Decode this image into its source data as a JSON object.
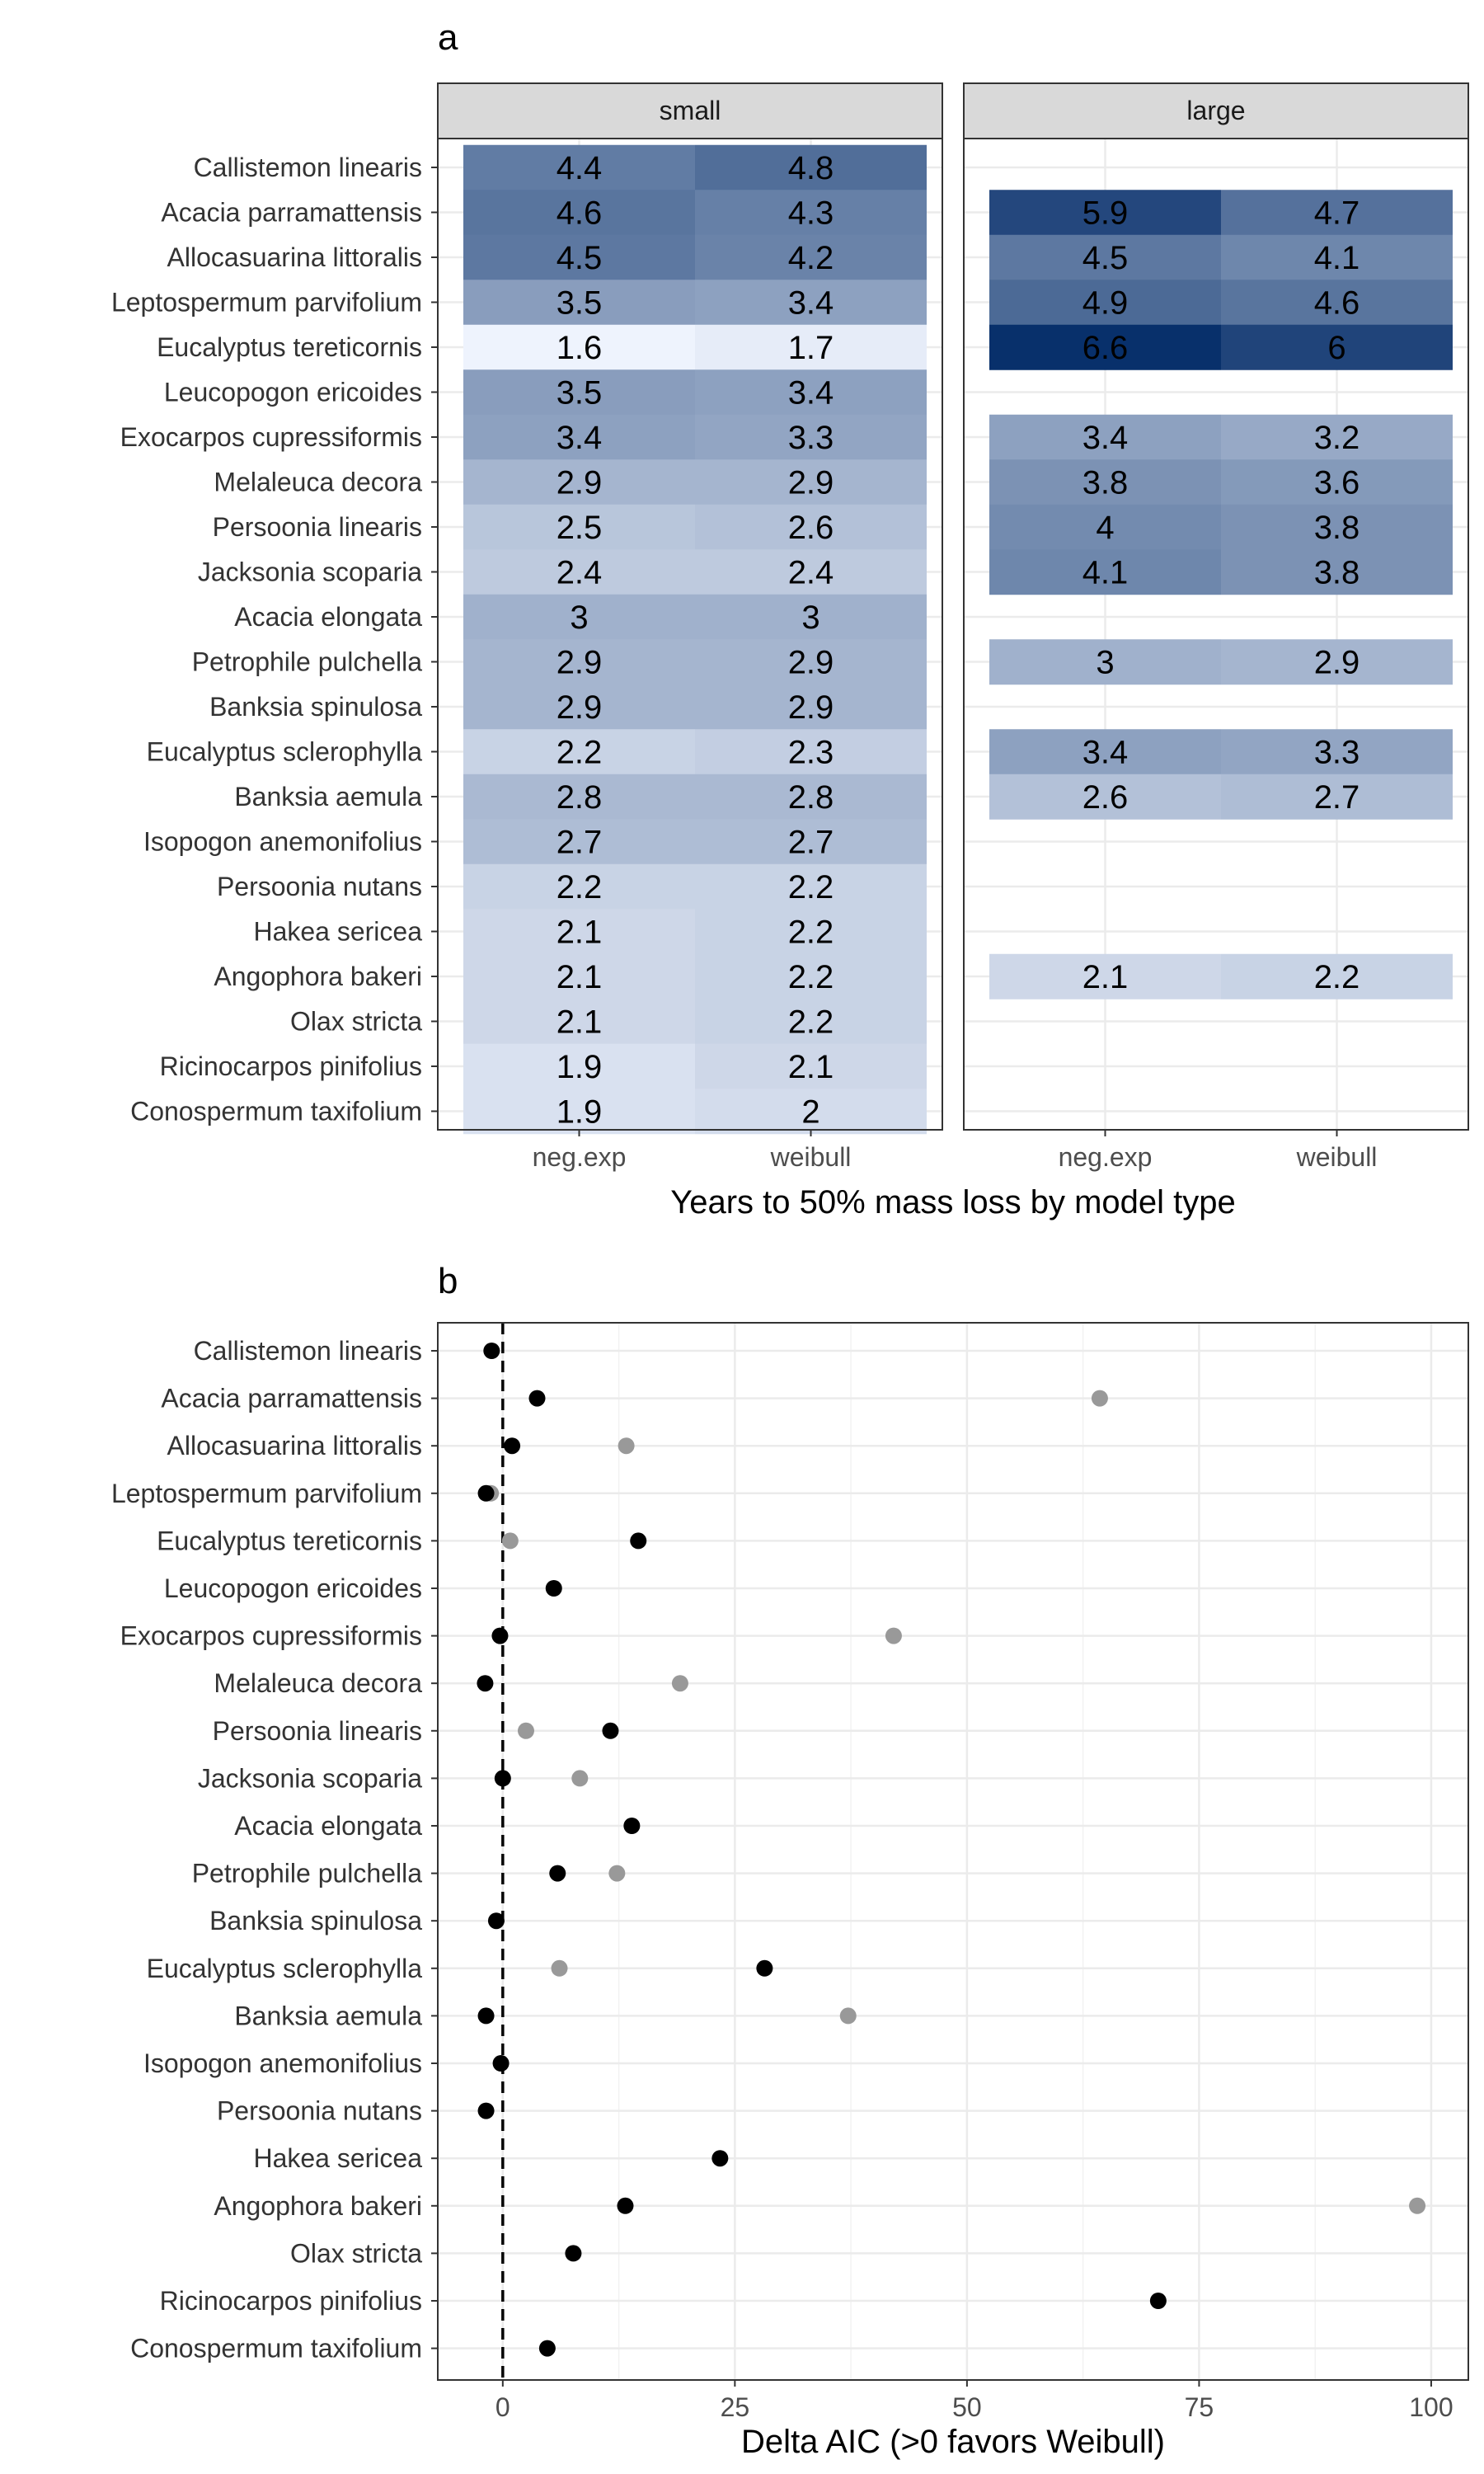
{
  "chart_data": [
    {
      "type": "heatmap",
      "panel_tag": "a",
      "xlabel": "Years to 50% mass loss by model type",
      "facets": [
        "small",
        "large"
      ],
      "columns": [
        "neg.exp",
        "weibull"
      ],
      "species": [
        "Callistemon linearis",
        "Acacia parramattensis",
        "Allocasuarina littoralis",
        "Leptospermum parvifolium",
        "Eucalyptus tereticornis",
        "Leucopogon ericoides",
        "Exocarpos cupressiformis",
        "Melaleuca decora",
        "Persoonia linearis",
        "Jacksonia scoparia",
        "Acacia elongata",
        "Petrophile pulchella",
        "Banksia spinulosa",
        "Eucalyptus sclerophylla",
        "Banksia aemula",
        "Isopogon anemonifolius",
        "Persoonia nutans",
        "Hakea sericea",
        "Angophora bakeri",
        "Olax stricta",
        "Ricinocarpos pinifolius",
        "Conospermum taxifolium"
      ],
      "values": {
        "small": [
          [
            4.4,
            4.8
          ],
          [
            4.6,
            4.3
          ],
          [
            4.5,
            4.2
          ],
          [
            3.5,
            3.4
          ],
          [
            1.6,
            1.7
          ],
          [
            3.5,
            3.4
          ],
          [
            3.4,
            3.3
          ],
          [
            2.9,
            2.9
          ],
          [
            2.5,
            2.6
          ],
          [
            2.4,
            2.4
          ],
          [
            3,
            3
          ],
          [
            2.9,
            2.9
          ],
          [
            2.9,
            2.9
          ],
          [
            2.2,
            2.3
          ],
          [
            2.8,
            2.8
          ],
          [
            2.7,
            2.7
          ],
          [
            2.2,
            2.2
          ],
          [
            2.1,
            2.2
          ],
          [
            2.1,
            2.2
          ],
          [
            2.1,
            2.2
          ],
          [
            1.9,
            2.1
          ],
          [
            1.9,
            2
          ]
        ],
        "large": [
          null,
          [
            5.9,
            4.7
          ],
          [
            4.5,
            4.1
          ],
          [
            4.9,
            4.6
          ],
          [
            6.6,
            6
          ],
          null,
          [
            3.4,
            3.2
          ],
          [
            3.8,
            3.6
          ],
          [
            4,
            3.8
          ],
          [
            4.1,
            3.8
          ],
          null,
          [
            3,
            2.9
          ],
          null,
          [
            3.4,
            3.3
          ],
          [
            2.6,
            2.7
          ],
          null,
          null,
          null,
          [
            2.1,
            2.2
          ],
          null,
          null,
          null
        ]
      },
      "color_low": "#eef3fd",
      "color_high": "#08306b"
    },
    {
      "type": "scatter",
      "panel_tag": "b",
      "xlabel": "Delta AIC (>0 favors Weibull)",
      "xlim": [
        -7,
        104
      ],
      "xticks": [
        0,
        25,
        50,
        75,
        100
      ],
      "reference_line_x": 0,
      "series": [
        {
          "color": "#000000",
          "values": [
            -1.2,
            3.7,
            1.0,
            -1.8,
            14.6,
            5.5,
            -0.3,
            -1.9,
            11.6,
            0.0,
            13.9,
            5.9,
            -0.7,
            28.2,
            -1.8,
            -0.2,
            -1.8,
            23.4,
            13.2,
            7.6,
            70.6,
            4.8
          ]
        },
        {
          "color": "#999999",
          "values": [
            null,
            64.3,
            13.3,
            -1.3,
            0.8,
            null,
            42.1,
            19.1,
            2.5,
            8.3,
            null,
            12.3,
            null,
            6.1,
            37.2,
            null,
            null,
            null,
            98.5,
            null,
            null,
            null
          ]
        }
      ]
    }
  ]
}
